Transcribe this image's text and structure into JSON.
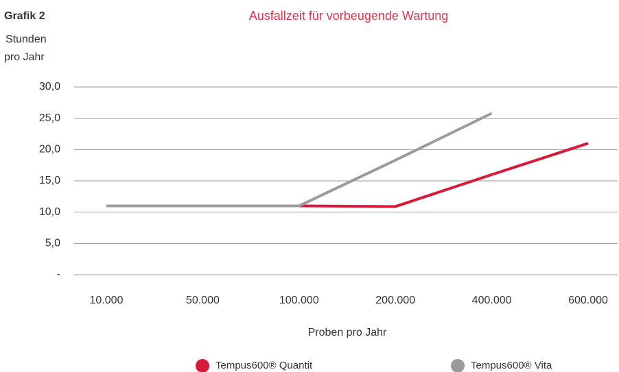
{
  "chart_data": {
    "type": "line",
    "label": "Grafik 2",
    "ylabel": [
      "Stunden",
      "pro Jahr"
    ],
    "title": "Ausfallzeit für vorbeugende Wartung",
    "xlabel": "Proben pro Jahr",
    "categories": [
      "10.000",
      "50.000",
      "100.000",
      "200.000",
      "400.000",
      "600.000"
    ],
    "series": [
      {
        "name": "Tempus600® Quantit",
        "color": "#d7193a",
        "values": [
          11,
          11,
          11,
          10.9,
          16,
          21
        ]
      },
      {
        "name": "Tempus600® Vita",
        "color": "#9b9b9c",
        "values": [
          11,
          11,
          11,
          18.3,
          25.8,
          null
        ]
      }
    ],
    "ylim": [
      0,
      30
    ],
    "yticks": [
      {
        "value": 0,
        "label": "-"
      },
      {
        "value": 5,
        "label": "5,0"
      },
      {
        "value": 10,
        "label": "10,0"
      },
      {
        "value": 15,
        "label": "15,0"
      },
      {
        "value": 20,
        "label": "20,0"
      },
      {
        "value": 25,
        "label": "25,0"
      },
      {
        "value": 30,
        "label": "30,0"
      }
    ],
    "grid": true,
    "legend": "bottom"
  }
}
